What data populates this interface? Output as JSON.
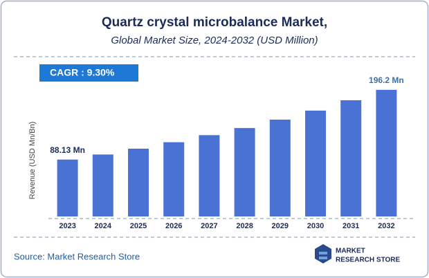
{
  "chart_data": {
    "type": "bar",
    "title": "Quartz crystal microbalance Market,",
    "subtitle": "Global Market Size, 2024-2032 (USD Million)",
    "cagr": "CAGR :  9.30%",
    "y_label": "Revenue (USD Mn/Bn)",
    "categories": [
      "2023",
      "2024",
      "2025",
      "2026",
      "2027",
      "2028",
      "2029",
      "2030",
      "2031",
      "2032"
    ],
    "values": [
      88.13,
      96,
      105,
      115,
      126,
      137,
      150,
      164,
      180,
      196.2
    ],
    "value_labels": [
      "88.13 Mn",
      null,
      null,
      null,
      null,
      null,
      null,
      null,
      null,
      "196.2 Mn"
    ],
    "color": "#4a72d4",
    "ylim": [
      0,
      210
    ],
    "source": "Source: Market Research Store",
    "logo_text": [
      "MARKET",
      "RESEARCH STORE"
    ]
  }
}
